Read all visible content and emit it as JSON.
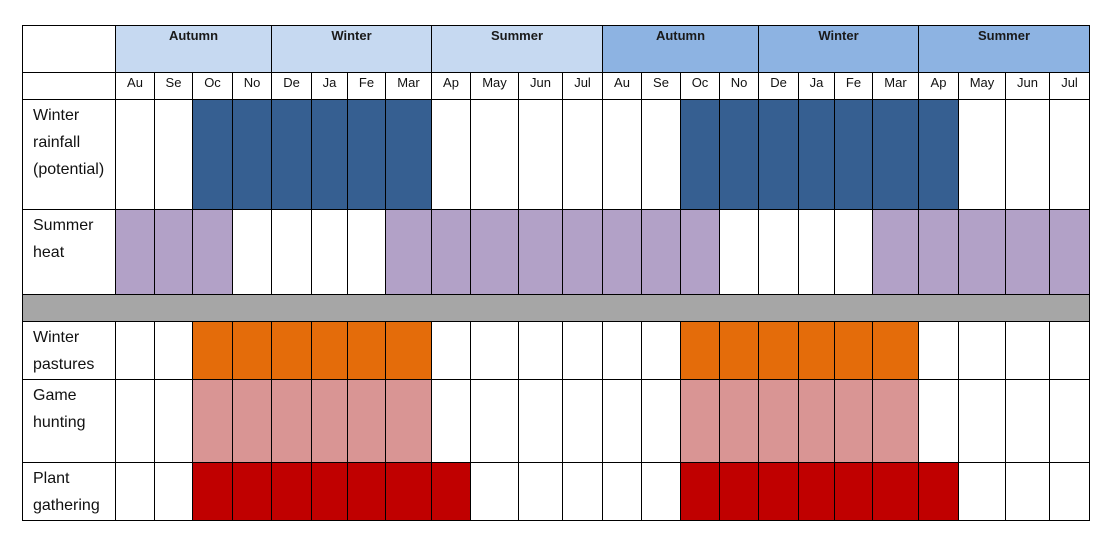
{
  "colors": {
    "season_light": "#c6d9f1",
    "season_dark": "#8db3e2",
    "rainfall": "#365f91",
    "heat": "#b2a1c7",
    "separator": "#a6a6a6",
    "pastures": "#e46c0a",
    "hunting": "#d99594",
    "gathering": "#c00000",
    "empty": "#ffffff"
  },
  "seasons": [
    {
      "label": "Autumn",
      "span": 4,
      "shade": "light"
    },
    {
      "label": "Winter",
      "span": 4,
      "shade": "light"
    },
    {
      "label": "Summer",
      "span": 4,
      "shade": "light"
    },
    {
      "label": "Autumn",
      "span": 4,
      "shade": "dark"
    },
    {
      "label": "Winter",
      "span": 4,
      "shade": "dark"
    },
    {
      "label": "Summer",
      "span": 4,
      "shade": "dark"
    }
  ],
  "months": [
    {
      "label": "Au"
    },
    {
      "label": "Se"
    },
    {
      "label": "Oc",
      "spell": true
    },
    {
      "label": "No"
    },
    {
      "label": "De"
    },
    {
      "label": "Ja"
    },
    {
      "label": "Fe"
    },
    {
      "label": "Mar"
    },
    {
      "label": "Ap",
      "spell": true
    },
    {
      "label": "May"
    },
    {
      "label": "Jun"
    },
    {
      "label": "Jul"
    },
    {
      "label": "Au"
    },
    {
      "label": "Se"
    },
    {
      "label": "Oc",
      "spell": true
    },
    {
      "label": "No"
    },
    {
      "label": "De"
    },
    {
      "label": "Ja"
    },
    {
      "label": "Fe"
    },
    {
      "label": "Mar"
    },
    {
      "label": "Ap",
      "spell": true
    },
    {
      "label": "May"
    },
    {
      "label": "Jun"
    },
    {
      "label": "Jul"
    }
  ],
  "rows": [
    {
      "key": "rainfall",
      "label": "Winter\nrainfall\n(potential)",
      "color": "rainfall",
      "filled": [
        0,
        0,
        1,
        1,
        1,
        1,
        1,
        1,
        0,
        0,
        0,
        0,
        0,
        0,
        1,
        1,
        1,
        1,
        1,
        1,
        1,
        0,
        0,
        0
      ]
    },
    {
      "key": "heat",
      "label": "Summer\nheat",
      "color": "heat",
      "filled": [
        1,
        1,
        1,
        0,
        0,
        0,
        0,
        1,
        1,
        1,
        1,
        1,
        1,
        1,
        1,
        0,
        0,
        0,
        0,
        1,
        1,
        1,
        1,
        1
      ]
    },
    {
      "key": "separator",
      "label": "",
      "color": "separator",
      "separator": true
    },
    {
      "key": "pastures",
      "label": "Winter\npastures",
      "color": "pastures",
      "filled": [
        0,
        0,
        1,
        1,
        1,
        1,
        1,
        1,
        0,
        0,
        0,
        0,
        0,
        0,
        1,
        1,
        1,
        1,
        1,
        1,
        0,
        0,
        0,
        0
      ]
    },
    {
      "key": "hunting",
      "label": "Game\nhunting",
      "color": "hunting",
      "filled": [
        0,
        0,
        1,
        1,
        1,
        1,
        1,
        1,
        0,
        0,
        0,
        0,
        0,
        0,
        1,
        1,
        1,
        1,
        1,
        1,
        0,
        0,
        0,
        0
      ]
    },
    {
      "key": "gathering",
      "label": "Plant\ngathering",
      "color": "gathering",
      "filled": [
        0,
        0,
        1,
        1,
        1,
        1,
        1,
        1,
        1,
        0,
        0,
        0,
        0,
        0,
        1,
        1,
        1,
        1,
        1,
        1,
        1,
        0,
        0,
        0
      ]
    }
  ]
}
